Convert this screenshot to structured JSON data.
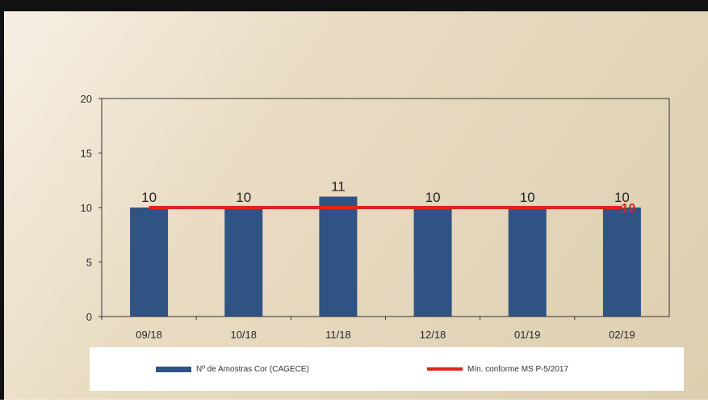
{
  "colors": {
    "bar": "#2f5383",
    "line": "#e0241b",
    "axis": "#333333"
  },
  "chart_data": {
    "type": "bar",
    "title": "",
    "xlabel": "",
    "ylabel": "",
    "categories": [
      "09/18",
      "10/18",
      "11/18",
      "12/18",
      "01/19",
      "02/19"
    ],
    "ylim": [
      0,
      20
    ],
    "yticks": [
      0,
      5,
      10,
      15,
      20
    ],
    "grid": false,
    "legend_position": "bottom",
    "series": [
      {
        "name": "Nº de Amostras Cor (CAGECE)",
        "type": "bar",
        "values": [
          10,
          10,
          11,
          10,
          10,
          10
        ],
        "data_labels": [
          "10",
          "10",
          "11",
          "10",
          "10",
          "10"
        ]
      },
      {
        "name": "Mín. conforme MS  P-5/2017",
        "type": "line",
        "values": [
          10,
          10,
          10,
          10,
          10,
          10
        ],
        "end_label": "10"
      }
    ]
  }
}
